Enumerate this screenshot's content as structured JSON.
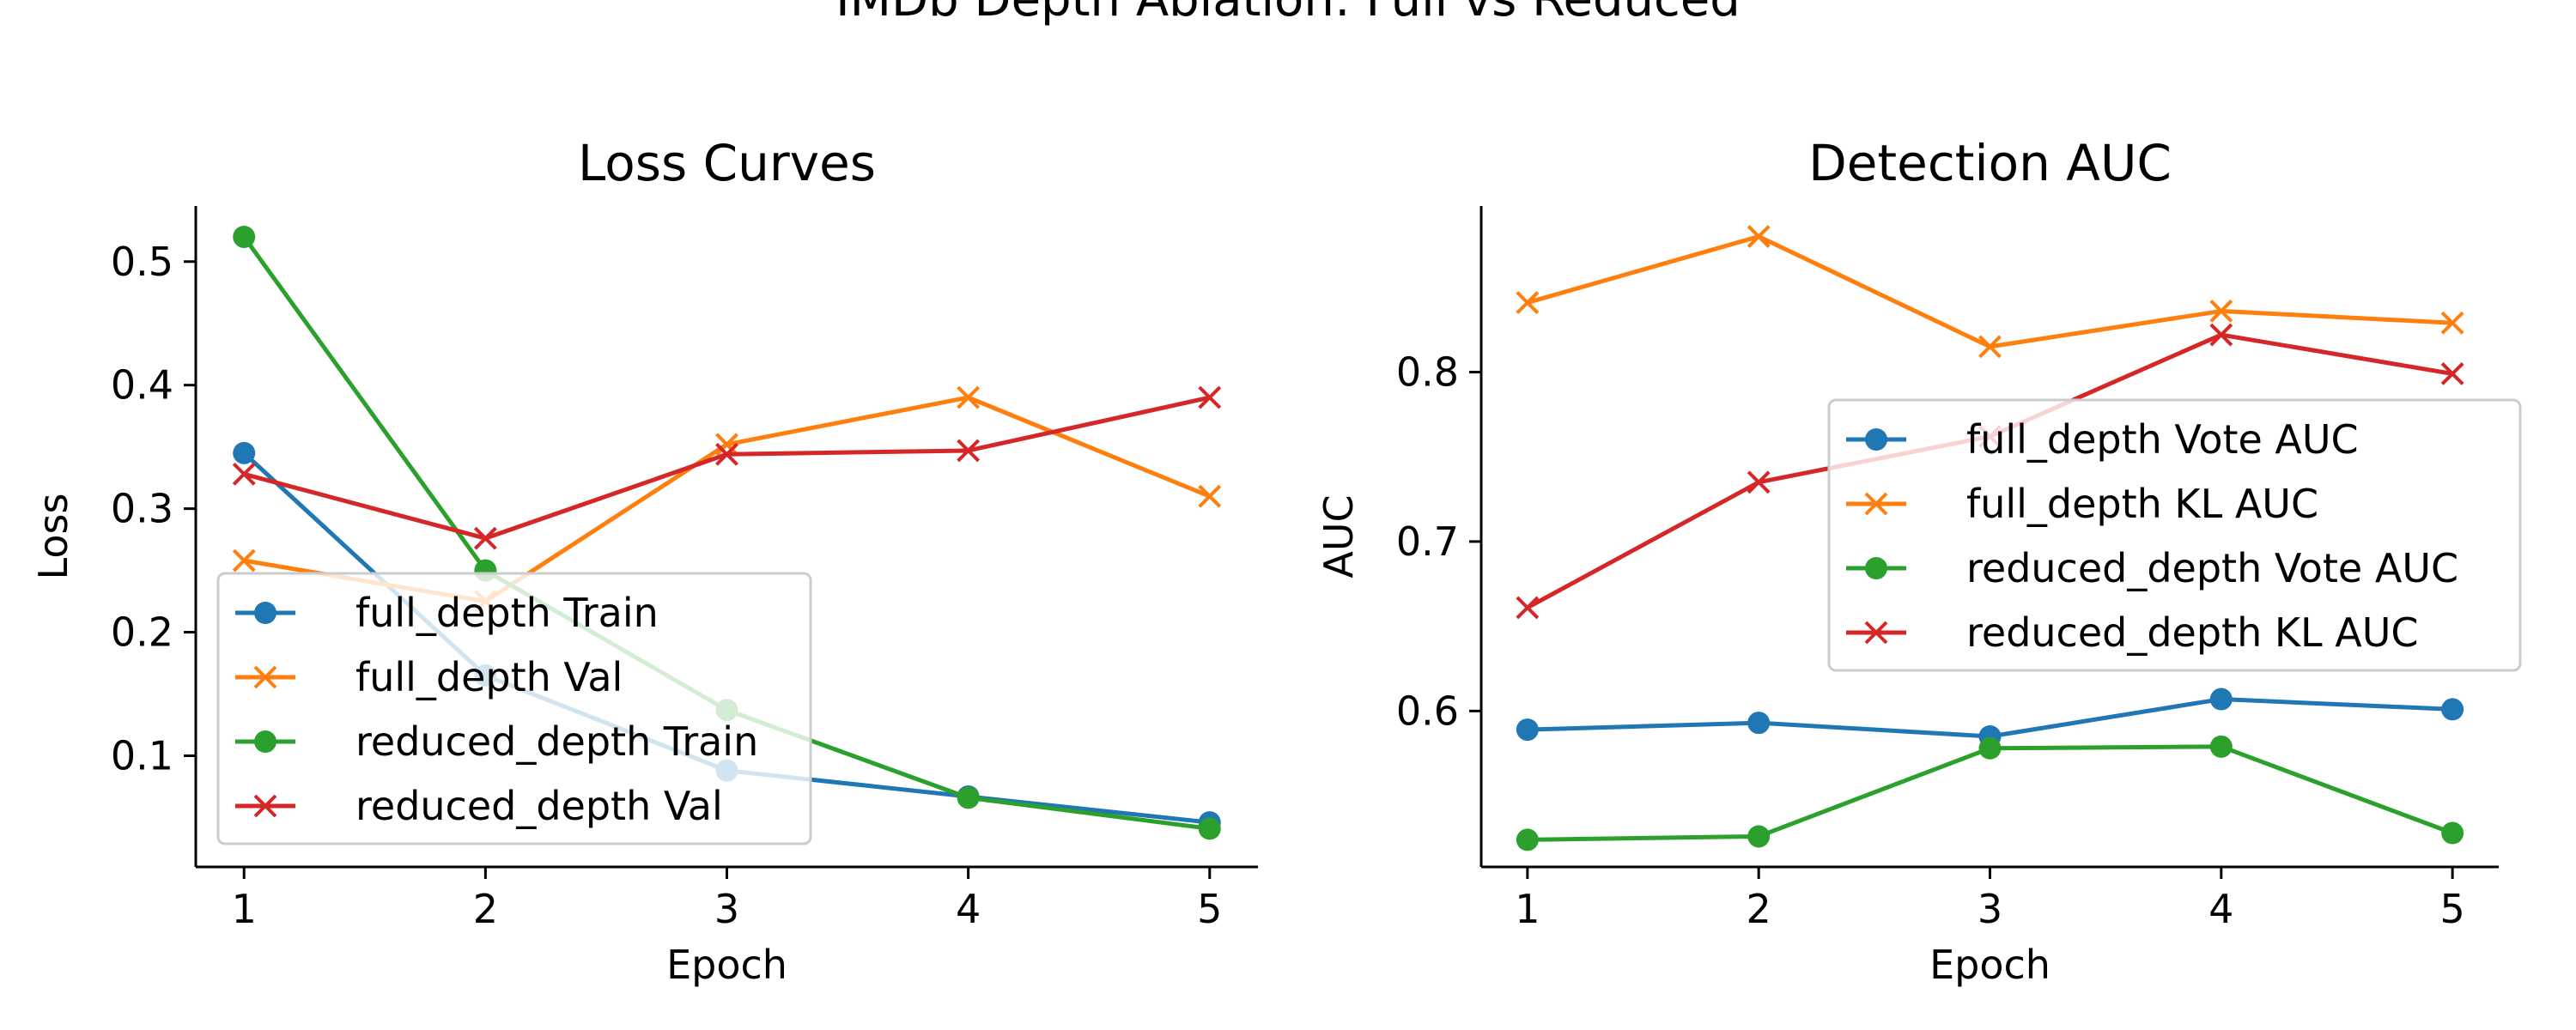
{
  "figure": {
    "suptitle": "IMDb Depth Ablation: Full vs Reduced"
  },
  "chart_data": [
    {
      "type": "line",
      "title": "Loss Curves",
      "xlabel": "Epoch",
      "ylabel": "Loss",
      "x": [
        1,
        2,
        3,
        4,
        5
      ],
      "xticks": [
        "1",
        "2",
        "3",
        "4",
        "5"
      ],
      "xlim": [
        0.8,
        5.2
      ],
      "yticks": [
        "0.1",
        "0.2",
        "0.3",
        "0.4",
        "0.5"
      ],
      "ylim": [
        0.01,
        0.545
      ],
      "legend_position": "lower-left",
      "grid": false,
      "series": [
        {
          "name": "full_depth Train",
          "values": [
            0.345,
            0.165,
            0.088,
            0.067,
            0.046
          ],
          "color": "#1f77b4",
          "marker": "circle"
        },
        {
          "name": "full_depth Val",
          "values": [
            0.258,
            0.225,
            0.352,
            0.39,
            0.31
          ],
          "color": "#ff7f0e",
          "marker": "x"
        },
        {
          "name": "reduced_depth Train",
          "values": [
            0.52,
            0.25,
            0.137,
            0.066,
            0.041
          ],
          "color": "#2ca02c",
          "marker": "circle"
        },
        {
          "name": "reduced_depth Val",
          "values": [
            0.328,
            0.276,
            0.344,
            0.347,
            0.39
          ],
          "color": "#d62728",
          "marker": "x"
        }
      ]
    },
    {
      "type": "line",
      "title": "Detection AUC",
      "xlabel": "Epoch",
      "ylabel": "AUC",
      "x": [
        1,
        2,
        3,
        4,
        5
      ],
      "xticks": [
        "1",
        "2",
        "3",
        "4",
        "5"
      ],
      "xlim": [
        0.8,
        5.2
      ],
      "yticks": [
        "0.6",
        "0.7",
        "0.8"
      ],
      "ylim": [
        0.508,
        0.898
      ],
      "legend_position": "center-right",
      "grid": false,
      "series": [
        {
          "name": "full_depth Vote AUC",
          "values": [
            0.589,
            0.593,
            0.585,
            0.607,
            0.601
          ],
          "color": "#1f77b4",
          "marker": "circle"
        },
        {
          "name": "full_depth KL AUC",
          "values": [
            0.841,
            0.88,
            0.815,
            0.836,
            0.829
          ],
          "color": "#ff7f0e",
          "marker": "x"
        },
        {
          "name": "reduced_depth Vote AUC",
          "values": [
            0.524,
            0.526,
            0.578,
            0.579,
            0.528
          ],
          "color": "#2ca02c",
          "marker": "circle"
        },
        {
          "name": "reduced_depth KL AUC",
          "values": [
            0.661,
            0.735,
            0.762,
            0.822,
            0.799
          ],
          "color": "#d62728",
          "marker": "x"
        }
      ]
    }
  ]
}
